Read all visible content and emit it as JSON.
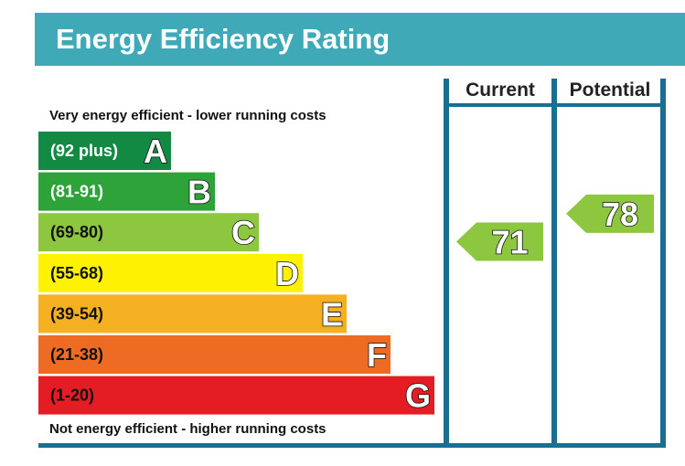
{
  "title": "Energy Efficiency Rating",
  "columns": {
    "current": "Current",
    "potential": "Potential"
  },
  "notes": {
    "top": "Very energy efficient - lower running costs",
    "bottom": "Not energy efficient - higher running costs"
  },
  "colors": {
    "header": "#3fa9b8",
    "frame": "#1a6f91"
  },
  "chart_data": {
    "type": "bar",
    "title": "Energy Efficiency Rating",
    "bands": [
      {
        "letter": "A",
        "range": "(92 plus)",
        "min": 92,
        "max": 100,
        "color": "#138a43"
      },
      {
        "letter": "B",
        "range": "(81-91)",
        "min": 81,
        "max": 91,
        "color": "#2ea33a"
      },
      {
        "letter": "C",
        "range": "(69-80)",
        "min": 69,
        "max": 80,
        "color": "#8dc63f"
      },
      {
        "letter": "D",
        "range": "(55-68)",
        "min": 55,
        "max": 68,
        "color": "#fff200"
      },
      {
        "letter": "E",
        "range": "(39-54)",
        "min": 39,
        "max": 54,
        "color": "#f5b021"
      },
      {
        "letter": "F",
        "range": "(21-38)",
        "min": 21,
        "max": 38,
        "color": "#ed6b23"
      },
      {
        "letter": "G",
        "range": "(1-20)",
        "min": 1,
        "max": 20,
        "color": "#e31d23"
      }
    ],
    "current": {
      "value": 71,
      "band": "C",
      "color": "#8dc63f"
    },
    "potential": {
      "value": 78,
      "band": "C",
      "color": "#8dc63f"
    }
  }
}
